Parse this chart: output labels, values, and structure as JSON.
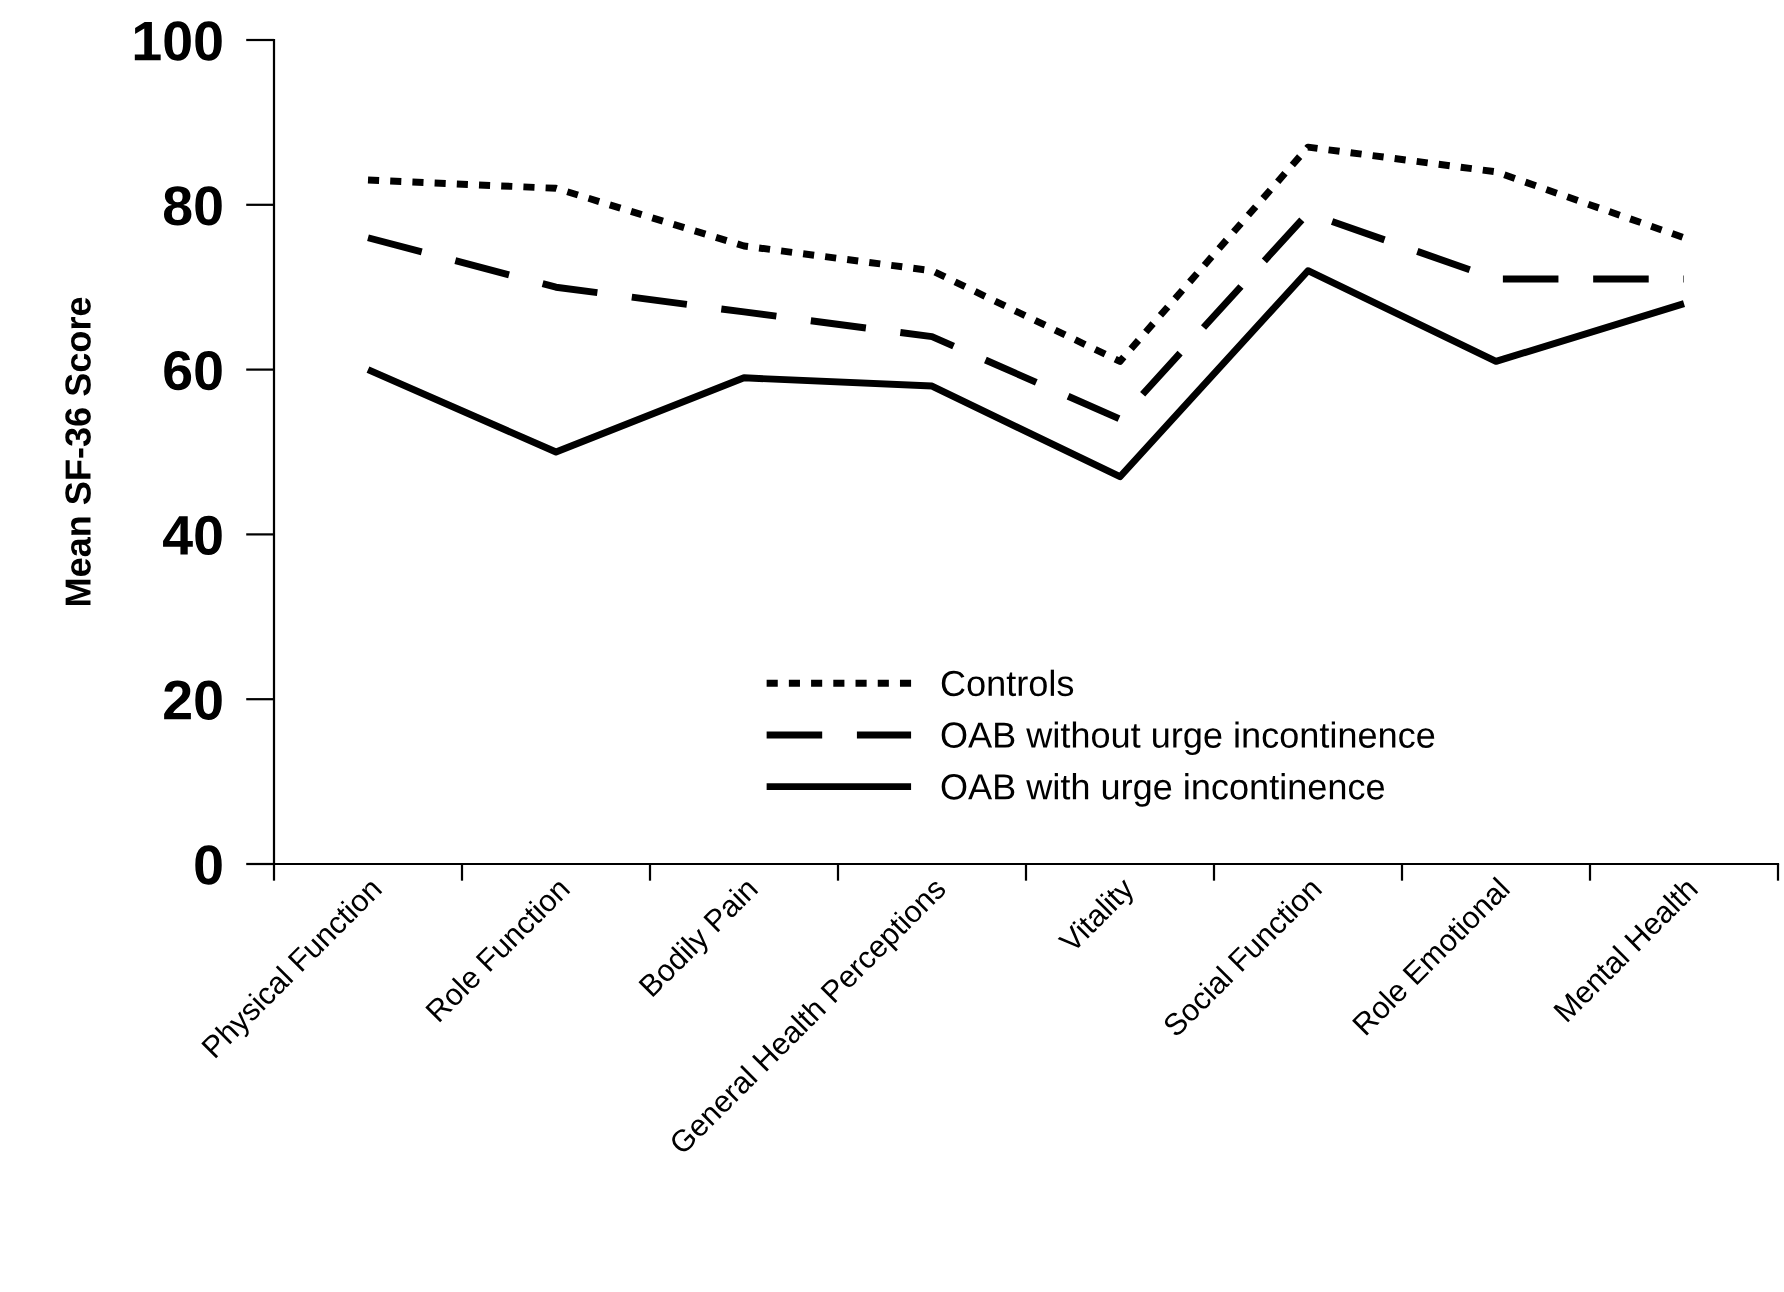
{
  "chart_data": {
    "type": "line",
    "ylabel": "Mean SF-36 Score",
    "categories": [
      "Physical Function",
      "Role Function",
      "Bodily Pain",
      "General Health Perceptions",
      "Vitality",
      "Social Function",
      "Role Emotional",
      "Mental Health"
    ],
    "series": [
      {
        "name": "Controls",
        "color": "#000000",
        "line_style": "dotted",
        "values": [
          83,
          82,
          75,
          72,
          61,
          87,
          84,
          76
        ]
      },
      {
        "name": "OAB without urge incontinence",
        "color": "#000000",
        "line_style": "dashed",
        "values": [
          76,
          70,
          67,
          64,
          54,
          79,
          71,
          71
        ]
      },
      {
        "name": "OAB with urge incontinence",
        "color": "#000000",
        "line_style": "solid",
        "values": [
          60,
          50,
          59,
          58,
          47,
          72,
          61,
          68
        ]
      }
    ],
    "ylim": [
      0,
      100
    ],
    "yticks": [
      0,
      20,
      40,
      60,
      80,
      100
    ],
    "grid": false,
    "legend": "bottom",
    "marker": "none"
  }
}
